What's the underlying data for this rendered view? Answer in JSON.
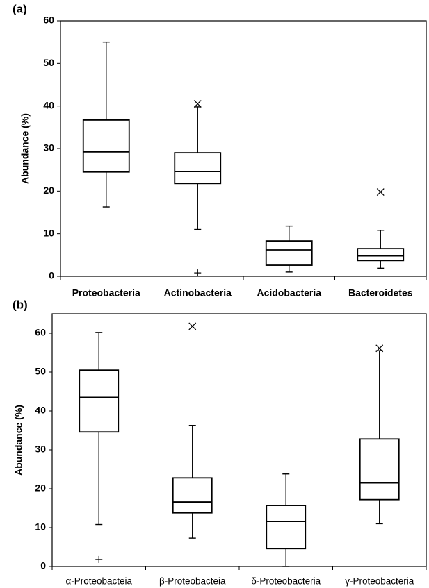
{
  "chart_data": [
    {
      "panel_label": "(a)",
      "type": "boxplot",
      "ylabel": "Abundance (%)",
      "ylim": [
        0,
        60
      ],
      "yticks": [
        0,
        10,
        20,
        30,
        40,
        50,
        60
      ],
      "categories": [
        "Proteobacteria",
        "Actinobacteria",
        "Acidobacteria",
        "Bacteroidetes"
      ],
      "boxes": [
        {
          "name": "Proteobacteria",
          "whisker_low": 16.3,
          "q1": 24.5,
          "median": 29.2,
          "q3": 36.7,
          "whisker_high": 55.0,
          "outliers": []
        },
        {
          "name": "Actinobacteria",
          "whisker_low": 11.0,
          "q1": 21.8,
          "median": 24.6,
          "q3": 29.0,
          "whisker_high": 39.8,
          "outliers": [
            {
              "value": 40.5,
              "marker": "x"
            },
            {
              "value": 0.8,
              "marker": "+"
            }
          ]
        },
        {
          "name": "Acidobacteria",
          "whisker_low": 1.0,
          "q1": 2.6,
          "median": 6.2,
          "q3": 8.3,
          "whisker_high": 11.8,
          "outliers": []
        },
        {
          "name": "Bacteroidetes",
          "whisker_low": 1.9,
          "q1": 3.7,
          "median": 4.8,
          "q3": 6.5,
          "whisker_high": 10.8,
          "outliers": [
            {
              "value": 19.8,
              "marker": "x"
            }
          ]
        }
      ]
    },
    {
      "panel_label": "(b)",
      "type": "boxplot",
      "ylabel": "Abundance (%)",
      "ylim": [
        0,
        65
      ],
      "yticks": [
        0,
        10,
        20,
        30,
        40,
        50,
        60
      ],
      "categories": [
        "α-Proteobacteia",
        "β-Proteobacteia",
        "δ-Proteobacteria",
        "γ-Proteobacteria"
      ],
      "boxes": [
        {
          "name": "α-Proteobacteia",
          "whisker_low": 10.8,
          "q1": 34.6,
          "median": 43.5,
          "q3": 50.5,
          "whisker_high": 60.2,
          "outliers": [
            {
              "value": 1.8,
              "marker": "+"
            }
          ]
        },
        {
          "name": "β-Proteobacteia",
          "whisker_low": 7.3,
          "q1": 13.8,
          "median": 16.6,
          "q3": 22.8,
          "whisker_high": 36.3,
          "outliers": [
            {
              "value": 61.8,
              "marker": "x"
            }
          ]
        },
        {
          "name": "δ-Proteobacteria",
          "whisker_low": 0.0,
          "q1": 4.6,
          "median": 11.6,
          "q3": 15.7,
          "whisker_high": 23.8,
          "outliers": []
        },
        {
          "name": "γ-Proteobacteria",
          "whisker_low": 11.0,
          "q1": 17.2,
          "median": 21.5,
          "q3": 32.8,
          "whisker_high": 55.5,
          "outliers": [
            {
              "value": 56.1,
              "marker": "x"
            }
          ]
        }
      ]
    }
  ]
}
